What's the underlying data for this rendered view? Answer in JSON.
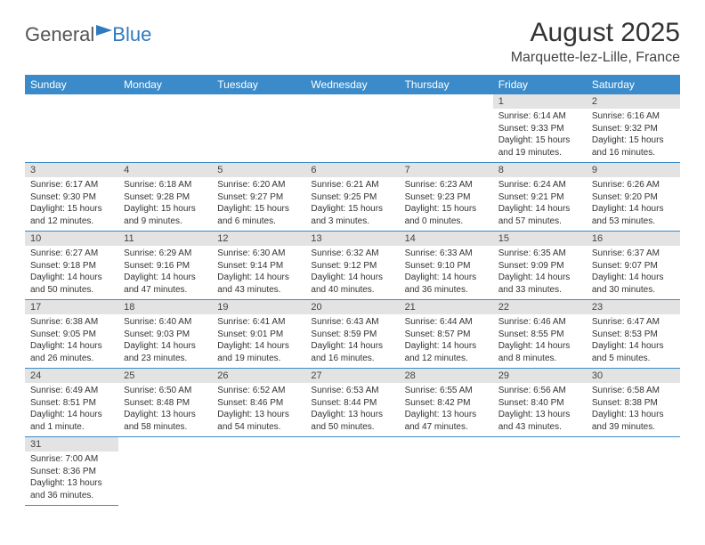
{
  "brand": {
    "part1": "General",
    "part2": "Blue"
  },
  "title": "August 2025",
  "location": "Marquette-lez-Lille, France",
  "weekdays": [
    "Sunday",
    "Monday",
    "Tuesday",
    "Wednesday",
    "Thursday",
    "Friday",
    "Saturday"
  ],
  "colors": {
    "header_bg": "#3b8bca",
    "header_text": "#ffffff",
    "daynum_bg": "#e3e3e3",
    "border": "#3b8bca",
    "brand_blue": "#2f7abf",
    "text": "#333333",
    "background": "#ffffff"
  },
  "typography": {
    "title_fontsize": 30,
    "location_fontsize": 16,
    "weekday_fontsize": 12,
    "daynum_fontsize": 11,
    "info_fontsize": 10,
    "font_family": "Arial"
  },
  "layout": {
    "columns": 7,
    "rows": 6
  },
  "weeks": [
    [
      null,
      null,
      null,
      null,
      null,
      {
        "day": "1",
        "sunrise": "Sunrise: 6:14 AM",
        "sunset": "Sunset: 9:33 PM",
        "daylight": "Daylight: 15 hours and 19 minutes."
      },
      {
        "day": "2",
        "sunrise": "Sunrise: 6:16 AM",
        "sunset": "Sunset: 9:32 PM",
        "daylight": "Daylight: 15 hours and 16 minutes."
      }
    ],
    [
      {
        "day": "3",
        "sunrise": "Sunrise: 6:17 AM",
        "sunset": "Sunset: 9:30 PM",
        "daylight": "Daylight: 15 hours and 12 minutes."
      },
      {
        "day": "4",
        "sunrise": "Sunrise: 6:18 AM",
        "sunset": "Sunset: 9:28 PM",
        "daylight": "Daylight: 15 hours and 9 minutes."
      },
      {
        "day": "5",
        "sunrise": "Sunrise: 6:20 AM",
        "sunset": "Sunset: 9:27 PM",
        "daylight": "Daylight: 15 hours and 6 minutes."
      },
      {
        "day": "6",
        "sunrise": "Sunrise: 6:21 AM",
        "sunset": "Sunset: 9:25 PM",
        "daylight": "Daylight: 15 hours and 3 minutes."
      },
      {
        "day": "7",
        "sunrise": "Sunrise: 6:23 AM",
        "sunset": "Sunset: 9:23 PM",
        "daylight": "Daylight: 15 hours and 0 minutes."
      },
      {
        "day": "8",
        "sunrise": "Sunrise: 6:24 AM",
        "sunset": "Sunset: 9:21 PM",
        "daylight": "Daylight: 14 hours and 57 minutes."
      },
      {
        "day": "9",
        "sunrise": "Sunrise: 6:26 AM",
        "sunset": "Sunset: 9:20 PM",
        "daylight": "Daylight: 14 hours and 53 minutes."
      }
    ],
    [
      {
        "day": "10",
        "sunrise": "Sunrise: 6:27 AM",
        "sunset": "Sunset: 9:18 PM",
        "daylight": "Daylight: 14 hours and 50 minutes."
      },
      {
        "day": "11",
        "sunrise": "Sunrise: 6:29 AM",
        "sunset": "Sunset: 9:16 PM",
        "daylight": "Daylight: 14 hours and 47 minutes."
      },
      {
        "day": "12",
        "sunrise": "Sunrise: 6:30 AM",
        "sunset": "Sunset: 9:14 PM",
        "daylight": "Daylight: 14 hours and 43 minutes."
      },
      {
        "day": "13",
        "sunrise": "Sunrise: 6:32 AM",
        "sunset": "Sunset: 9:12 PM",
        "daylight": "Daylight: 14 hours and 40 minutes."
      },
      {
        "day": "14",
        "sunrise": "Sunrise: 6:33 AM",
        "sunset": "Sunset: 9:10 PM",
        "daylight": "Daylight: 14 hours and 36 minutes."
      },
      {
        "day": "15",
        "sunrise": "Sunrise: 6:35 AM",
        "sunset": "Sunset: 9:09 PM",
        "daylight": "Daylight: 14 hours and 33 minutes."
      },
      {
        "day": "16",
        "sunrise": "Sunrise: 6:37 AM",
        "sunset": "Sunset: 9:07 PM",
        "daylight": "Daylight: 14 hours and 30 minutes."
      }
    ],
    [
      {
        "day": "17",
        "sunrise": "Sunrise: 6:38 AM",
        "sunset": "Sunset: 9:05 PM",
        "daylight": "Daylight: 14 hours and 26 minutes."
      },
      {
        "day": "18",
        "sunrise": "Sunrise: 6:40 AM",
        "sunset": "Sunset: 9:03 PM",
        "daylight": "Daylight: 14 hours and 23 minutes."
      },
      {
        "day": "19",
        "sunrise": "Sunrise: 6:41 AM",
        "sunset": "Sunset: 9:01 PM",
        "daylight": "Daylight: 14 hours and 19 minutes."
      },
      {
        "day": "20",
        "sunrise": "Sunrise: 6:43 AM",
        "sunset": "Sunset: 8:59 PM",
        "daylight": "Daylight: 14 hours and 16 minutes."
      },
      {
        "day": "21",
        "sunrise": "Sunrise: 6:44 AM",
        "sunset": "Sunset: 8:57 PM",
        "daylight": "Daylight: 14 hours and 12 minutes."
      },
      {
        "day": "22",
        "sunrise": "Sunrise: 6:46 AM",
        "sunset": "Sunset: 8:55 PM",
        "daylight": "Daylight: 14 hours and 8 minutes."
      },
      {
        "day": "23",
        "sunrise": "Sunrise: 6:47 AM",
        "sunset": "Sunset: 8:53 PM",
        "daylight": "Daylight: 14 hours and 5 minutes."
      }
    ],
    [
      {
        "day": "24",
        "sunrise": "Sunrise: 6:49 AM",
        "sunset": "Sunset: 8:51 PM",
        "daylight": "Daylight: 14 hours and 1 minute."
      },
      {
        "day": "25",
        "sunrise": "Sunrise: 6:50 AM",
        "sunset": "Sunset: 8:48 PM",
        "daylight": "Daylight: 13 hours and 58 minutes."
      },
      {
        "day": "26",
        "sunrise": "Sunrise: 6:52 AM",
        "sunset": "Sunset: 8:46 PM",
        "daylight": "Daylight: 13 hours and 54 minutes."
      },
      {
        "day": "27",
        "sunrise": "Sunrise: 6:53 AM",
        "sunset": "Sunset: 8:44 PM",
        "daylight": "Daylight: 13 hours and 50 minutes."
      },
      {
        "day": "28",
        "sunrise": "Sunrise: 6:55 AM",
        "sunset": "Sunset: 8:42 PM",
        "daylight": "Daylight: 13 hours and 47 minutes."
      },
      {
        "day": "29",
        "sunrise": "Sunrise: 6:56 AM",
        "sunset": "Sunset: 8:40 PM",
        "daylight": "Daylight: 13 hours and 43 minutes."
      },
      {
        "day": "30",
        "sunrise": "Sunrise: 6:58 AM",
        "sunset": "Sunset: 8:38 PM",
        "daylight": "Daylight: 13 hours and 39 minutes."
      }
    ],
    [
      {
        "day": "31",
        "sunrise": "Sunrise: 7:00 AM",
        "sunset": "Sunset: 8:36 PM",
        "daylight": "Daylight: 13 hours and 36 minutes."
      },
      null,
      null,
      null,
      null,
      null,
      null
    ]
  ]
}
